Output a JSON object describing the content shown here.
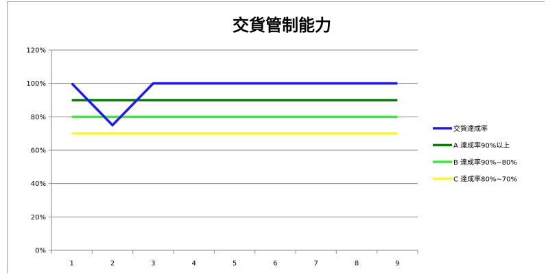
{
  "chart_data": {
    "type": "line",
    "title": "交貨管制能力",
    "xlabel": "",
    "ylabel": "",
    "x": [
      1,
      2,
      3,
      4,
      5,
      6,
      7,
      8,
      9
    ],
    "x_tick_labels": [
      "1",
      "2",
      "3",
      "4",
      "5",
      "6",
      "7",
      "8",
      "9"
    ],
    "ylim": [
      0,
      1.2
    ],
    "y_tick_labels": [
      "0%",
      "20%",
      "40%",
      "60%",
      "80%",
      "100%",
      "120%"
    ],
    "y_ticks": [
      0,
      0.2,
      0.4,
      0.6,
      0.8,
      1.0,
      1.2
    ],
    "grid": "horizontal",
    "legend_position": "right",
    "series": [
      {
        "name": "交貨達成率",
        "color": "#1a1aff",
        "values": [
          1.0,
          0.75,
          1.0,
          1.0,
          1.0,
          1.0,
          1.0,
          1.0,
          1.0
        ]
      },
      {
        "name": "A 達成率90%以上",
        "color": "#0a7a0a",
        "values": [
          0.9,
          0.9,
          0.9,
          0.9,
          0.9,
          0.9,
          0.9,
          0.9,
          0.9
        ]
      },
      {
        "name": "B 達成率90%~80%",
        "color": "#33ee33",
        "values": [
          0.8,
          0.8,
          0.8,
          0.8,
          0.8,
          0.8,
          0.8,
          0.8,
          0.8
        ]
      },
      {
        "name": "C 達成率80%~70%",
        "color": "#ffff00",
        "values": [
          0.7,
          0.7,
          0.7,
          0.7,
          0.7,
          0.7,
          0.7,
          0.7,
          0.7
        ]
      }
    ]
  }
}
